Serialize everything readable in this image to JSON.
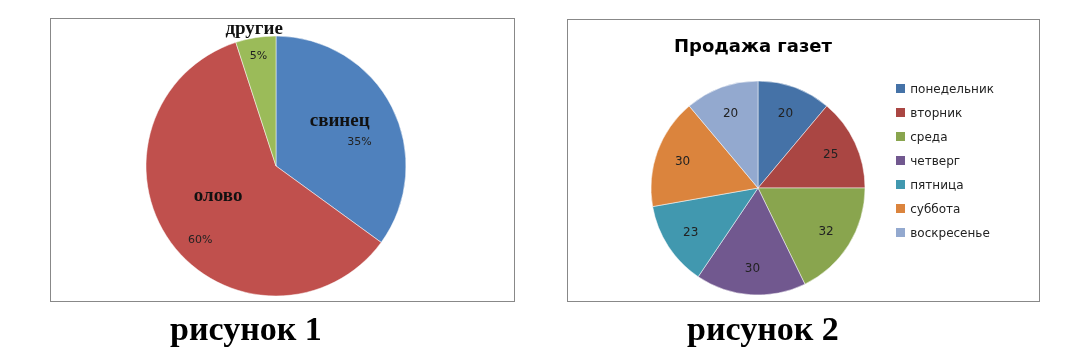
{
  "chart_data": [
    {
      "type": "pie",
      "categories": [
        "свинец",
        "олово",
        "другие"
      ],
      "values": [
        35,
        60,
        5
      ],
      "colors": [
        "#4f81bd",
        "#c0504d",
        "#9bbb59"
      ],
      "value_labels": [
        "35%",
        "60%",
        "5%"
      ],
      "legend": false,
      "annotations": [
        "рисунок 1"
      ]
    },
    {
      "type": "pie",
      "title": "Продажа газет",
      "categories": [
        "понедельник",
        "вторник",
        "среда",
        "четверг",
        "пятница",
        "суббота",
        "воскресенье"
      ],
      "values": [
        20,
        25,
        32,
        30,
        23,
        30,
        20
      ],
      "colors": [
        "#4572a7",
        "#aa4643",
        "#89a54e",
        "#71588f",
        "#4198af",
        "#db843d",
        "#93a9cf"
      ],
      "data_labels": true,
      "legend": "right",
      "annotations": [
        "рисунок 2"
      ]
    }
  ]
}
